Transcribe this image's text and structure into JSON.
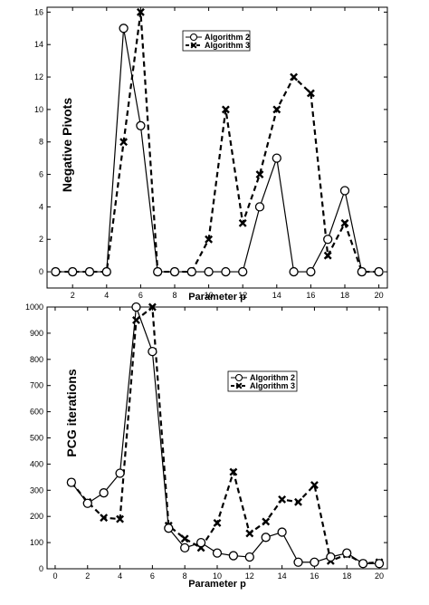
{
  "chart_data": [
    {
      "type": "line",
      "title": "",
      "xlabel": "Parameter p",
      "ylabel": "Negative Pivots",
      "xlim": [
        0.5,
        20.5
      ],
      "ylim": [
        -1,
        16.3
      ],
      "x_ticks": [
        2,
        4,
        6,
        8,
        10,
        12,
        14,
        16,
        18,
        20
      ],
      "y_ticks": [
        0,
        2,
        4,
        6,
        8,
        10,
        12,
        14,
        16
      ],
      "x": [
        1,
        2,
        3,
        4,
        5,
        6,
        7,
        8,
        9,
        10,
        11,
        12,
        13,
        14,
        15,
        16,
        17,
        18,
        19,
        20
      ],
      "legend_position": "top-center",
      "grid": false,
      "series": [
        {
          "name": "Algorithm 2",
          "style": "solid",
          "marker": "circle",
          "color": "#000000",
          "values": [
            0,
            0,
            0,
            0,
            15,
            9,
            0,
            0,
            0,
            0,
            0,
            0,
            4,
            7,
            0,
            0,
            2,
            5,
            0,
            0
          ]
        },
        {
          "name": "Algorithm 3",
          "style": "dashed",
          "marker": "x",
          "color": "#000000",
          "values": [
            0,
            0,
            0,
            0,
            8,
            16,
            0,
            0,
            0,
            2,
            10,
            3,
            6,
            10,
            12,
            11,
            1,
            3,
            0,
            0
          ]
        }
      ]
    },
    {
      "type": "line",
      "title": "",
      "xlabel": "Parameter p",
      "ylabel": "PCG iterations",
      "xlim": [
        -0.5,
        20.5
      ],
      "ylim": [
        0,
        1000
      ],
      "x_ticks": [
        0,
        2,
        4,
        6,
        8,
        10,
        12,
        14,
        16,
        18,
        20
      ],
      "y_ticks": [
        0,
        100,
        200,
        300,
        400,
        500,
        600,
        700,
        800,
        900,
        1000
      ],
      "x": [
        1,
        2,
        3,
        4,
        5,
        6,
        7,
        8,
        9,
        10,
        11,
        12,
        13,
        14,
        15,
        16,
        17,
        18,
        19,
        20
      ],
      "legend_position": "upper-right",
      "grid": false,
      "series": [
        {
          "name": "Algorithm 2",
          "style": "solid",
          "marker": "circle",
          "color": "#000000",
          "values": [
            330,
            250,
            290,
            365,
            1000,
            830,
            155,
            80,
            100,
            60,
            50,
            45,
            120,
            140,
            25,
            25,
            45,
            60,
            20,
            20
          ]
        },
        {
          "name": "Algorithm 3",
          "style": "dashed",
          "marker": "x",
          "color": "#000000",
          "values": [
            330,
            255,
            195,
            190,
            950,
            1000,
            165,
            115,
            80,
            175,
            370,
            135,
            180,
            265,
            255,
            320,
            30,
            55,
            20,
            25
          ]
        }
      ]
    }
  ]
}
